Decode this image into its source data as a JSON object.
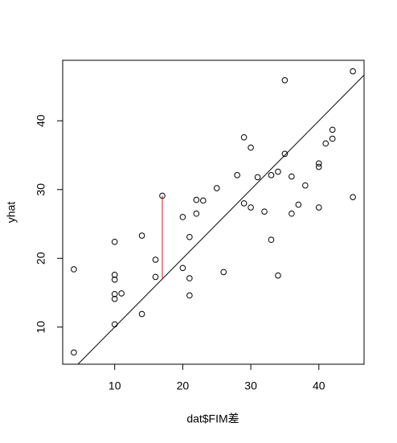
{
  "chart_data": {
    "type": "scatter",
    "x_label": "dat$FIM差",
    "y_label": "yhat",
    "x": [
      4,
      4,
      10,
      10,
      10,
      10,
      10,
      10,
      11,
      14,
      14,
      16,
      16,
      17,
      20,
      20,
      21,
      21,
      21,
      22,
      22,
      23,
      25,
      26,
      28,
      29,
      29,
      30,
      30,
      31,
      32,
      33,
      33,
      34,
      34,
      35,
      35,
      36,
      36,
      37,
      38,
      40,
      40,
      40,
      41,
      42,
      42,
      45,
      45
    ],
    "y": [
      18.4,
      6.3,
      22.4,
      17.6,
      16.9,
      14.8,
      14.1,
      10.4,
      14.9,
      23.3,
      11.9,
      19.8,
      17.3,
      29.1,
      26,
      18.6,
      23.1,
      17.1,
      14.6,
      28.5,
      26.5,
      28.4,
      30.2,
      18,
      32.1,
      37.6,
      28,
      36.1,
      27.4,
      31.8,
      26.8,
      32.1,
      22.7,
      32.6,
      17.5,
      45.9,
      35.2,
      31.9,
      26.5,
      27.8,
      30.6,
      33.8,
      33.3,
      27.4,
      36.7,
      38.7,
      37.4,
      47.2,
      28.9
    ],
    "color": "#000000",
    "abline": {
      "intercept": 0,
      "slope": 1,
      "color": "#000000"
    },
    "segment": {
      "x": 17,
      "y0": 17,
      "y1": 29.1,
      "color": "#d7191c"
    },
    "xlim": [
      2.36,
      46.64
    ],
    "ylim": [
      4.6,
      48.8
    ],
    "xticks": [
      10,
      20,
      30,
      40
    ],
    "yticks": [
      10,
      20,
      30,
      40
    ],
    "grid": false
  }
}
